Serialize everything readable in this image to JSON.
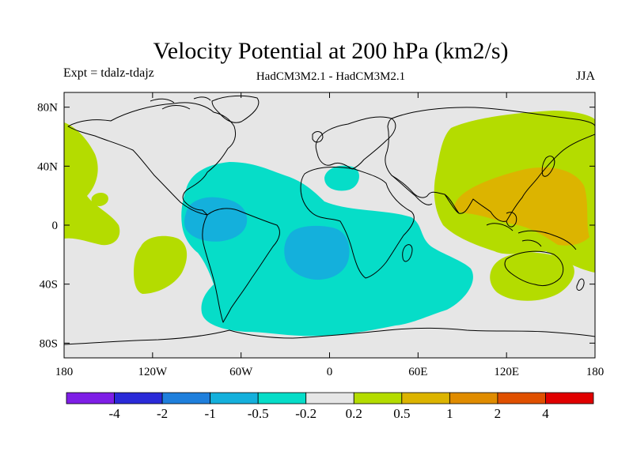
{
  "title": "Velocity Potential at 200 hPa (km2/s)",
  "subtitle_left": "Expt = tdalz-tdajz",
  "subtitle_center": "HadCM3M2.1 - HadCM3M2.1",
  "subtitle_right": "JJA",
  "axes": {
    "lon_range": [
      -180,
      180
    ],
    "lat_range": [
      -90,
      90
    ],
    "x_ticks": [
      {
        "value": -180,
        "label": "180"
      },
      {
        "value": -120,
        "label": "120W"
      },
      {
        "value": -60,
        "label": "60W"
      },
      {
        "value": 0,
        "label": "0"
      },
      {
        "value": 60,
        "label": "60E"
      },
      {
        "value": 120,
        "label": "120E"
      },
      {
        "value": 180,
        "label": "180"
      }
    ],
    "y_ticks": [
      {
        "value": 80,
        "label": "80N"
      },
      {
        "value": 40,
        "label": "40N"
      },
      {
        "value": 0,
        "label": "0"
      },
      {
        "value": -40,
        "label": "40S"
      },
      {
        "value": -80,
        "label": "80S"
      }
    ]
  },
  "colorbar": {
    "colors": [
      "#7e1ee6",
      "#2a2ad8",
      "#1f7fdc",
      "#14b0dc",
      "#06ddc8",
      "#e6e6e6",
      "#b4dc00",
      "#dcb400",
      "#e08c00",
      "#e05000",
      "#e00000"
    ],
    "labels": [
      "-4",
      "-2",
      "-1",
      "-0.5",
      "-0.2",
      "0.2",
      "0.5",
      "1",
      "2",
      "4"
    ]
  },
  "colors": {
    "ocean_background": "#e6e6e6",
    "neg_02_05": "#06ddc8",
    "neg_05_1": "#14b0dc",
    "pos_02_05": "#b4dc00",
    "pos_05_1": "#dcb400",
    "coast": "#000000"
  }
}
